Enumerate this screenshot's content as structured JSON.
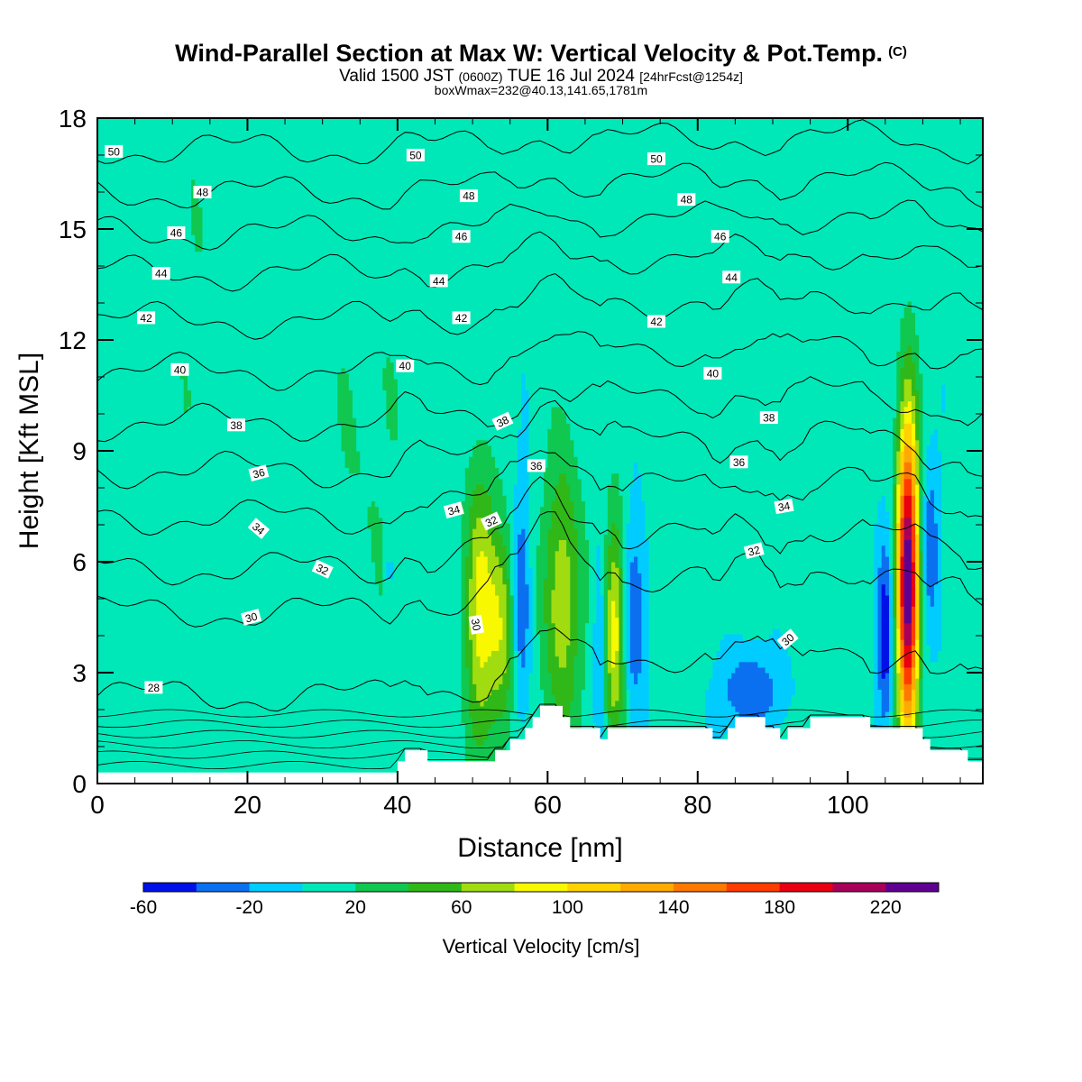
{
  "header": {
    "title": "Wind-Parallel Section at Max W: Vertical Velocity & Pot.Temp.",
    "copyright": "(C)",
    "valid_prefix": "Valid 1500 JST",
    "valid_utc": "(0600Z)",
    "valid_date": "TUE 16 Jul 2024",
    "forecast": "[24hrFcst@1254z]",
    "box_info": "boxWmax=232@40.13,141.65,1781m"
  },
  "chart_data": {
    "type": "heatmap",
    "xlabel": "Distance [nm]",
    "ylabel": "Height [Kft MSL]",
    "xlim": [
      0,
      118
    ],
    "ylim": [
      0,
      18
    ],
    "x_ticks": [
      0,
      20,
      40,
      60,
      80,
      100
    ],
    "y_ticks": [
      0,
      3,
      6,
      9,
      12,
      15,
      18
    ],
    "colorbar": {
      "label": "Vertical Velocity [cm/s]",
      "levels": [
        -60,
        -40,
        -20,
        0,
        20,
        40,
        60,
        80,
        100,
        120,
        140,
        160,
        180,
        200,
        220,
        240
      ],
      "tick_labels": [
        -60,
        -20,
        20,
        60,
        100,
        140,
        180,
        220
      ],
      "colors": [
        "#0010e8",
        "#0a70f0",
        "#00ccff",
        "#00e8b8",
        "#10c850",
        "#30b818",
        "#a0dc10",
        "#f8f800",
        "#ffd200",
        "#ffaa00",
        "#ff7800",
        "#ff3c00",
        "#e80010",
        "#a80058",
        "#600090"
      ]
    },
    "background_color": "#00d0ff",
    "updraft_max": 232,
    "terrain": [
      [
        0,
        0.3
      ],
      [
        40,
        0.3
      ],
      [
        40,
        0.6
      ],
      [
        41,
        0.6
      ],
      [
        41,
        0.9
      ],
      [
        44,
        0.9
      ],
      [
        44,
        0.6
      ],
      [
        53,
        0.6
      ],
      [
        53,
        0.9
      ],
      [
        55,
        0.9
      ],
      [
        55,
        1.2
      ],
      [
        57,
        1.2
      ],
      [
        57,
        1.5
      ],
      [
        58,
        1.5
      ],
      [
        58,
        1.8
      ],
      [
        59,
        1.8
      ],
      [
        59,
        2.1
      ],
      [
        62,
        2.1
      ],
      [
        62,
        1.8
      ],
      [
        63,
        1.8
      ],
      [
        63,
        1.5
      ],
      [
        67,
        1.5
      ],
      [
        67,
        1.2
      ],
      [
        68,
        1.2
      ],
      [
        68,
        1.5
      ],
      [
        82,
        1.5
      ],
      [
        82,
        1.2
      ],
      [
        84,
        1.2
      ],
      [
        84,
        1.5
      ],
      [
        85,
        1.5
      ],
      [
        85,
        1.8
      ],
      [
        89,
        1.8
      ],
      [
        89,
        1.5
      ],
      [
        91,
        1.5
      ],
      [
        91,
        1.2
      ],
      [
        92,
        1.2
      ],
      [
        92,
        1.5
      ],
      [
        95,
        1.5
      ],
      [
        95,
        1.8
      ],
      [
        103,
        1.8
      ],
      [
        103,
        1.5
      ],
      [
        110,
        1.5
      ],
      [
        110,
        1.2
      ],
      [
        111,
        1.2
      ],
      [
        111,
        0.9
      ],
      [
        116,
        0.9
      ],
      [
        116,
        0.6
      ],
      [
        118,
        0.6
      ],
      [
        118,
        0
      ]
    ],
    "updrafts": [
      {
        "x": 51,
        "z": 4.7,
        "sx": 1.5,
        "sz": 2.6,
        "w": 85
      },
      {
        "x": 54,
        "z": 4.2,
        "sx": 1.2,
        "sz": 2.0,
        "w": 60
      },
      {
        "x": 62,
        "z": 5.0,
        "sx": 1.8,
        "sz": 2.8,
        "w": 70
      },
      {
        "x": 69,
        "z": 4.2,
        "sx": 1.0,
        "sz": 2.2,
        "w": 90
      },
      {
        "x": 108,
        "z": 5.5,
        "sx": 1.0,
        "sz": 3.2,
        "w": 232
      },
      {
        "x": 36,
        "z": 9.0,
        "sx": 5.0,
        "sz": 5.0,
        "w": 15
      },
      {
        "x": 13,
        "z": 13.0,
        "sx": 4.0,
        "sz": 6.0,
        "w": 12
      },
      {
        "x": 85,
        "z": 13.0,
        "sx": 4.0,
        "sz": 5.0,
        "w": 12
      }
    ],
    "downdrafts": [
      {
        "x": 56.5,
        "z": 5.0,
        "sx": 0.8,
        "sz": 2.0,
        "w": -45
      },
      {
        "x": 67,
        "z": 4.0,
        "sx": 0.6,
        "sz": 1.8,
        "w": -35
      },
      {
        "x": 71.5,
        "z": 4.5,
        "sx": 1.2,
        "sz": 1.8,
        "w": -45
      },
      {
        "x": 87,
        "z": 2.5,
        "sx": 2.8,
        "sz": 0.8,
        "w": -45
      },
      {
        "x": 105,
        "z": 4.0,
        "sx": 0.7,
        "sz": 1.8,
        "w": -60
      },
      {
        "x": 111,
        "z": 6.5,
        "sx": 0.8,
        "sz": 1.6,
        "w": -40
      },
      {
        "x": 39,
        "z": 5.8,
        "sx": 0.4,
        "sz": 0.3,
        "w": -30
      }
    ],
    "theta_contours": [
      {
        "theta": 28,
        "z": 2.1
      },
      {
        "theta": 30,
        "z": 4.4
      },
      {
        "theta": 32,
        "z": 5.6
      },
      {
        "theta": 34,
        "z": 7.0
      },
      {
        "theta": 36,
        "z": 8.3
      },
      {
        "theta": 38,
        "z": 9.6
      },
      {
        "theta": 40,
        "z": 11.0
      },
      {
        "theta": 42,
        "z": 12.4
      },
      {
        "theta": 44,
        "z": 13.7
      },
      {
        "theta": 46,
        "z": 14.8
      },
      {
        "theta": 48,
        "z": 15.9
      },
      {
        "theta": 50,
        "z": 17.1
      }
    ],
    "contour_labels": [
      {
        "text": "50",
        "x": 2.2,
        "z": 17.1,
        "rot": 0
      },
      {
        "text": "50",
        "x": 42.4,
        "z": 17.0,
        "rot": 0
      },
      {
        "text": "50",
        "x": 74.5,
        "z": 16.9,
        "rot": 0
      },
      {
        "text": "48",
        "x": 14,
        "z": 16.0,
        "rot": 0
      },
      {
        "text": "48",
        "x": 49.5,
        "z": 15.9,
        "rot": 0
      },
      {
        "text": "48",
        "x": 78.5,
        "z": 15.8,
        "rot": 0
      },
      {
        "text": "46",
        "x": 10.5,
        "z": 14.9,
        "rot": 0
      },
      {
        "text": "46",
        "x": 48.5,
        "z": 14.8,
        "rot": 0
      },
      {
        "text": "46",
        "x": 83,
        "z": 14.8,
        "rot": 0
      },
      {
        "text": "44",
        "x": 8.5,
        "z": 13.8,
        "rot": 0
      },
      {
        "text": "44",
        "x": 45.5,
        "z": 13.6,
        "rot": 0
      },
      {
        "text": "44",
        "x": 84.5,
        "z": 13.7,
        "rot": 0
      },
      {
        "text": "42",
        "x": 6.5,
        "z": 12.6,
        "rot": 0
      },
      {
        "text": "42",
        "x": 48.5,
        "z": 12.6,
        "rot": 0
      },
      {
        "text": "42",
        "x": 74.5,
        "z": 12.5,
        "rot": 0
      },
      {
        "text": "40",
        "x": 11,
        "z": 11.2,
        "rot": 0
      },
      {
        "text": "40",
        "x": 41,
        "z": 11.3,
        "rot": 0
      },
      {
        "text": "40",
        "x": 82,
        "z": 11.1,
        "rot": 0
      },
      {
        "text": "38",
        "x": 18.5,
        "z": 9.7,
        "rot": 0
      },
      {
        "text": "38",
        "x": 54,
        "z": 9.8,
        "rot": -25
      },
      {
        "text": "38",
        "x": 89.5,
        "z": 9.9,
        "rot": 0
      },
      {
        "text": "36",
        "x": 21.5,
        "z": 8.4,
        "rot": -15
      },
      {
        "text": "36",
        "x": 58.5,
        "z": 8.6,
        "rot": 0
      },
      {
        "text": "36",
        "x": 85.5,
        "z": 8.7,
        "rot": 0
      },
      {
        "text": "34",
        "x": 21.5,
        "z": 6.9,
        "rot": 40
      },
      {
        "text": "34",
        "x": 47.5,
        "z": 7.4,
        "rot": -15
      },
      {
        "text": "34",
        "x": 91.5,
        "z": 7.5,
        "rot": -10
      },
      {
        "text": "32",
        "x": 30,
        "z": 5.8,
        "rot": 25
      },
      {
        "text": "32",
        "x": 52.5,
        "z": 7.1,
        "rot": -25
      },
      {
        "text": "32",
        "x": 87.5,
        "z": 6.3,
        "rot": -15
      },
      {
        "text": "30",
        "x": 20.5,
        "z": 4.5,
        "rot": -15
      },
      {
        "text": "30",
        "x": 50.5,
        "z": 4.3,
        "rot": 80
      },
      {
        "text": "30",
        "x": 92,
        "z": 3.9,
        "rot": -40
      },
      {
        "text": "28",
        "x": 7.5,
        "z": 2.6,
        "rot": 0
      }
    ]
  }
}
